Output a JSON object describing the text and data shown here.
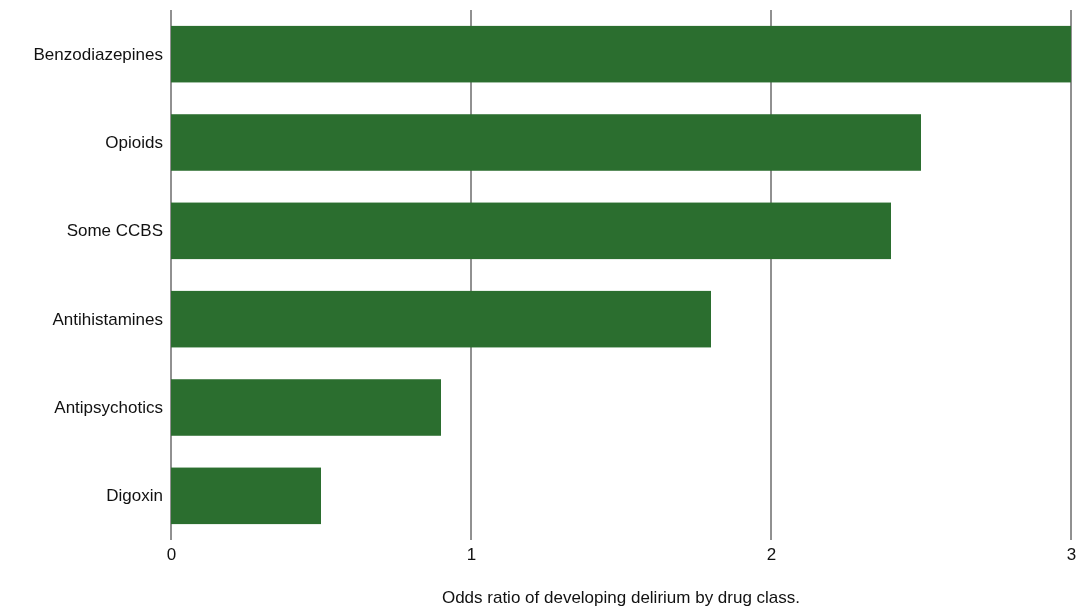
{
  "chart_data": {
    "type": "bar",
    "orientation": "horizontal",
    "xlabel": "Odds ratio of developing delirium by drug class.",
    "categories": [
      "Benzodiazepines",
      "Opioids",
      "Some CCBS",
      "Antihistamines",
      "Antipsychotics",
      "Digoxin"
    ],
    "values": [
      3.0,
      2.5,
      2.4,
      1.8,
      0.9,
      0.5
    ],
    "color": "#2b6e2f",
    "xlim": [
      0,
      3
    ],
    "xticks": [
      0,
      1,
      2,
      3
    ],
    "grid": "x"
  }
}
